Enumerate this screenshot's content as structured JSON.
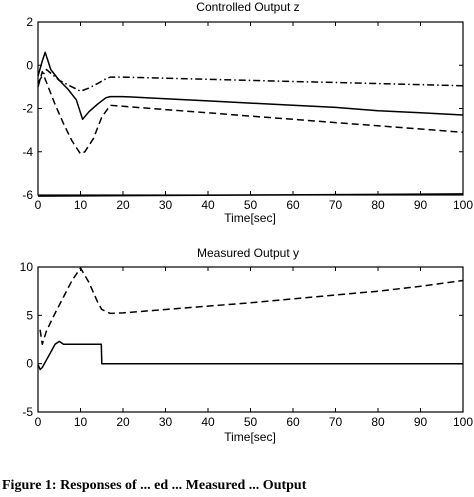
{
  "chart_data": [
    {
      "type": "line",
      "title": "Controlled Output z",
      "xlabel": "Time[sec]",
      "ylabel": "",
      "xlim": [
        0,
        100
      ],
      "ylim": [
        -6,
        2
      ],
      "xticks": [
        0,
        10,
        20,
        30,
        40,
        50,
        60,
        70,
        80,
        90,
        100
      ],
      "yticks": [
        -6,
        -4,
        -2,
        0,
        2
      ],
      "grid": false,
      "series": [
        {
          "style": "dashdot",
          "color": "#000000",
          "x": [
            0,
            2,
            5,
            8,
            10,
            12,
            14,
            16,
            17,
            20,
            30,
            40,
            50,
            60,
            70,
            80,
            90,
            100
          ],
          "y": [
            -0.8,
            -0.2,
            -0.7,
            -1.0,
            -1.2,
            -1.05,
            -0.85,
            -0.62,
            -0.55,
            -0.55,
            -0.6,
            -0.65,
            -0.7,
            -0.75,
            -0.8,
            -0.85,
            -0.9,
            -0.95
          ]
        },
        {
          "style": "solid",
          "color": "#000000",
          "x": [
            0,
            1,
            1.7,
            3,
            5,
            7,
            9,
            10.5,
            12,
            14,
            16,
            17,
            20,
            30,
            40,
            50,
            60,
            70,
            80,
            90,
            100
          ],
          "y": [
            -0.5,
            0.2,
            0.6,
            -0.2,
            -0.7,
            -1.1,
            -1.6,
            -2.5,
            -2.15,
            -1.8,
            -1.5,
            -1.45,
            -1.45,
            -1.55,
            -1.65,
            -1.75,
            -1.85,
            -1.95,
            -2.1,
            -2.2,
            -2.3
          ]
        },
        {
          "style": "dashed",
          "color": "#000000",
          "x": [
            0,
            1,
            2,
            4,
            6,
            8,
            10,
            11,
            13,
            15,
            17,
            20,
            30,
            40,
            50,
            60,
            70,
            80,
            90,
            100
          ],
          "y": [
            -1.0,
            -0.3,
            -0.8,
            -1.8,
            -2.7,
            -3.5,
            -4.1,
            -4.0,
            -3.4,
            -2.4,
            -1.85,
            -1.9,
            -2.05,
            -2.2,
            -2.35,
            -2.5,
            -2.65,
            -2.8,
            -2.95,
            -3.1
          ]
        },
        {
          "style": "solid",
          "color": "#000000",
          "x": [
            0,
            100
          ],
          "y": [
            -6.05,
            -5.95
          ]
        }
      ]
    },
    {
      "type": "line",
      "title": "Measured Output y",
      "xlabel": "Time[sec]",
      "ylabel": "",
      "xlim": [
        0,
        100
      ],
      "ylim": [
        -5,
        10
      ],
      "xticks": [
        0,
        10,
        20,
        30,
        40,
        50,
        60,
        70,
        80,
        90,
        100
      ],
      "yticks": [
        -5,
        0,
        5,
        10
      ],
      "grid": false,
      "series": [
        {
          "style": "dashed",
          "color": "#000000",
          "x": [
            0.5,
            1,
            2,
            4,
            6,
            8,
            10,
            12,
            14,
            15,
            17,
            20,
            30,
            40,
            50,
            60,
            70,
            80,
            90,
            100
          ],
          "y": [
            3.5,
            2.0,
            3.4,
            5.2,
            6.9,
            8.6,
            9.9,
            8.4,
            6.4,
            5.6,
            5.2,
            5.25,
            5.6,
            5.95,
            6.3,
            6.7,
            7.1,
            7.5,
            8.0,
            8.6
          ]
        },
        {
          "style": "solid",
          "color": "#000000",
          "x": [
            0,
            0.5,
            1,
            2,
            3,
            4,
            5,
            6,
            10,
            14.9,
            15,
            20,
            100
          ],
          "y": [
            -0.1,
            -0.6,
            -0.4,
            0.4,
            1.2,
            2.0,
            2.3,
            2.0,
            2.0,
            2.0,
            0.0,
            0.0,
            0.0
          ]
        }
      ]
    }
  ],
  "caption": "Figure 1: Responses of ... ed ... Measured ... Output"
}
